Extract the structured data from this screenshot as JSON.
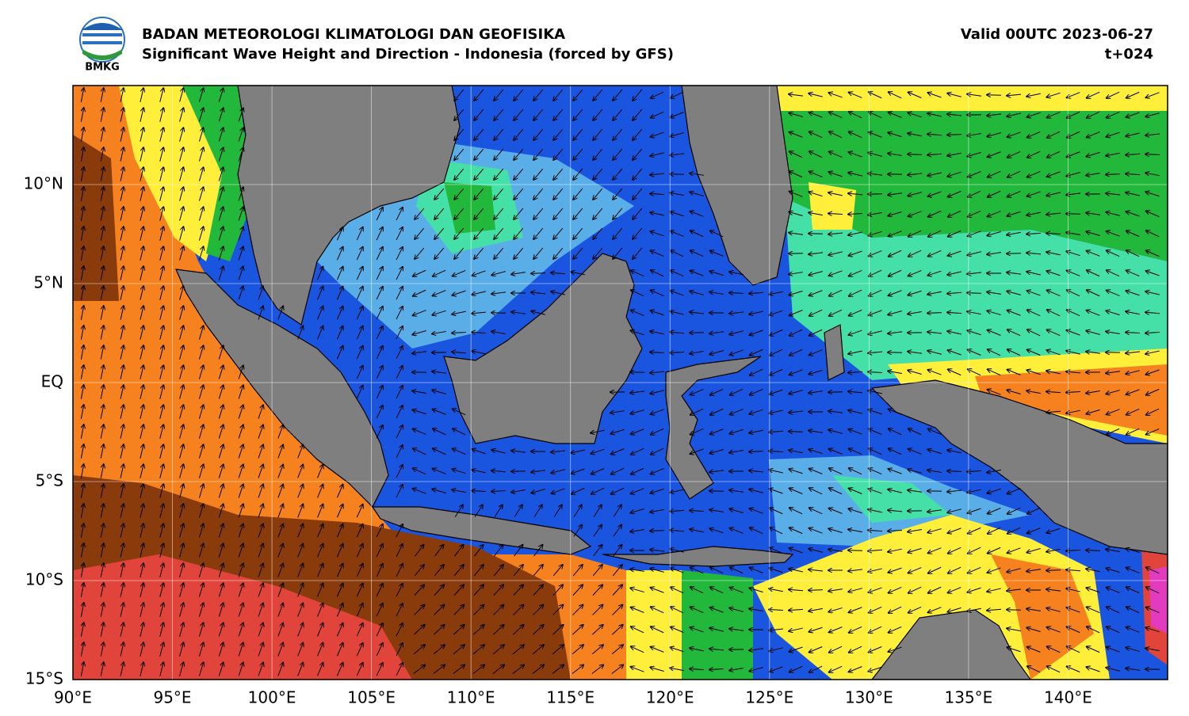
{
  "header": {
    "agency": "BADAN METEOROLOGI KLIMATOLOGI DAN GEOFISIKA",
    "subtitle": "Significant Wave Height and Direction - Indonesia (forced by GFS)",
    "valid": "Valid 00UTC 2023-06-27",
    "lead": "t+024"
  },
  "logo": {
    "text": "BMKG"
  },
  "map": {
    "xlim": [
      90,
      145
    ],
    "ylim": [
      -15,
      15
    ],
    "xticks": [
      {
        "value": 90,
        "label": "90°E"
      },
      {
        "value": 95,
        "label": "95°E"
      },
      {
        "value": 100,
        "label": "100°E"
      },
      {
        "value": 105,
        "label": "105°E"
      },
      {
        "value": 110,
        "label": "110°E"
      },
      {
        "value": 115,
        "label": "115°E"
      },
      {
        "value": 120,
        "label": "120°E"
      },
      {
        "value": 125,
        "label": "125°E"
      },
      {
        "value": 130,
        "label": "130°E"
      },
      {
        "value": 135,
        "label": "135°E"
      },
      {
        "value": 140,
        "label": "140°E"
      }
    ],
    "yticks": [
      {
        "value": 10,
        "label": "10°N"
      },
      {
        "value": 5,
        "label": "5°N"
      },
      {
        "value": 0,
        "label": "EQ"
      },
      {
        "value": -5,
        "label": "5°S"
      },
      {
        "value": -10,
        "label": "10°S"
      },
      {
        "value": -15,
        "label": "15°S"
      }
    ]
  }
}
